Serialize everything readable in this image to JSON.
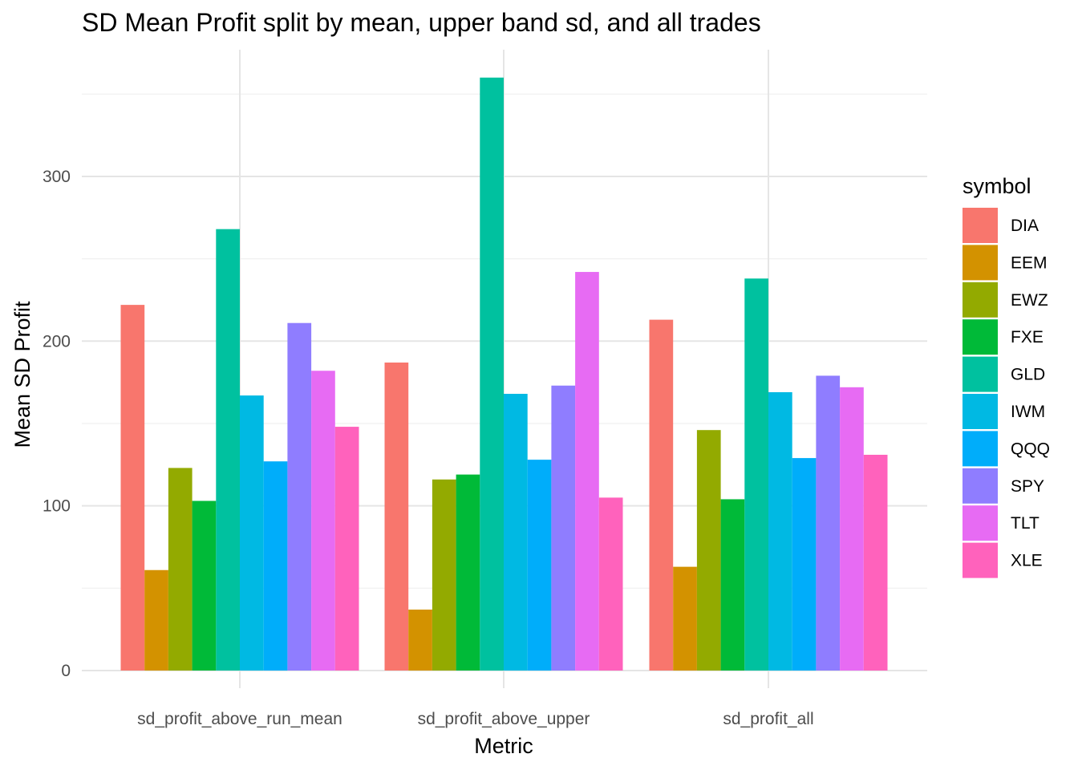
{
  "chart_data": {
    "type": "bar",
    "title": "SD Mean Profit split by mean, upper band sd, and all trades",
    "xlabel": "Metric",
    "ylabel": "Mean SD Profit",
    "ylim": [
      0,
      360
    ],
    "yticks": [
      0,
      100,
      200,
      300
    ],
    "grid": true,
    "legend_title": "symbol",
    "legend_position": "right",
    "categories": [
      "sd_profit_above_run_mean",
      "sd_profit_above_upper",
      "sd_profit_all"
    ],
    "series": [
      {
        "name": "DIA",
        "color": "#F8766D",
        "values": [
          222,
          187,
          213
        ]
      },
      {
        "name": "EEM",
        "color": "#D39200",
        "values": [
          61,
          37,
          63
        ]
      },
      {
        "name": "EWZ",
        "color": "#93AA00",
        "values": [
          123,
          116,
          146
        ]
      },
      {
        "name": "FXE",
        "color": "#00BA38",
        "values": [
          103,
          119,
          104
        ]
      },
      {
        "name": "GLD",
        "color": "#00C19F",
        "values": [
          268,
          360,
          238
        ]
      },
      {
        "name": "IWM",
        "color": "#00B9E3",
        "values": [
          167,
          168,
          169
        ]
      },
      {
        "name": "QQQ",
        "color": "#00ADFA",
        "values": [
          127,
          128,
          129
        ]
      },
      {
        "name": "SPY",
        "color": "#8F7DFF",
        "values": [
          211,
          173,
          179
        ]
      },
      {
        "name": "TLT",
        "color": "#E76BF3",
        "values": [
          182,
          242,
          172
        ]
      },
      {
        "name": "XLE",
        "color": "#FF62BC",
        "values": [
          148,
          105,
          131
        ]
      }
    ]
  }
}
